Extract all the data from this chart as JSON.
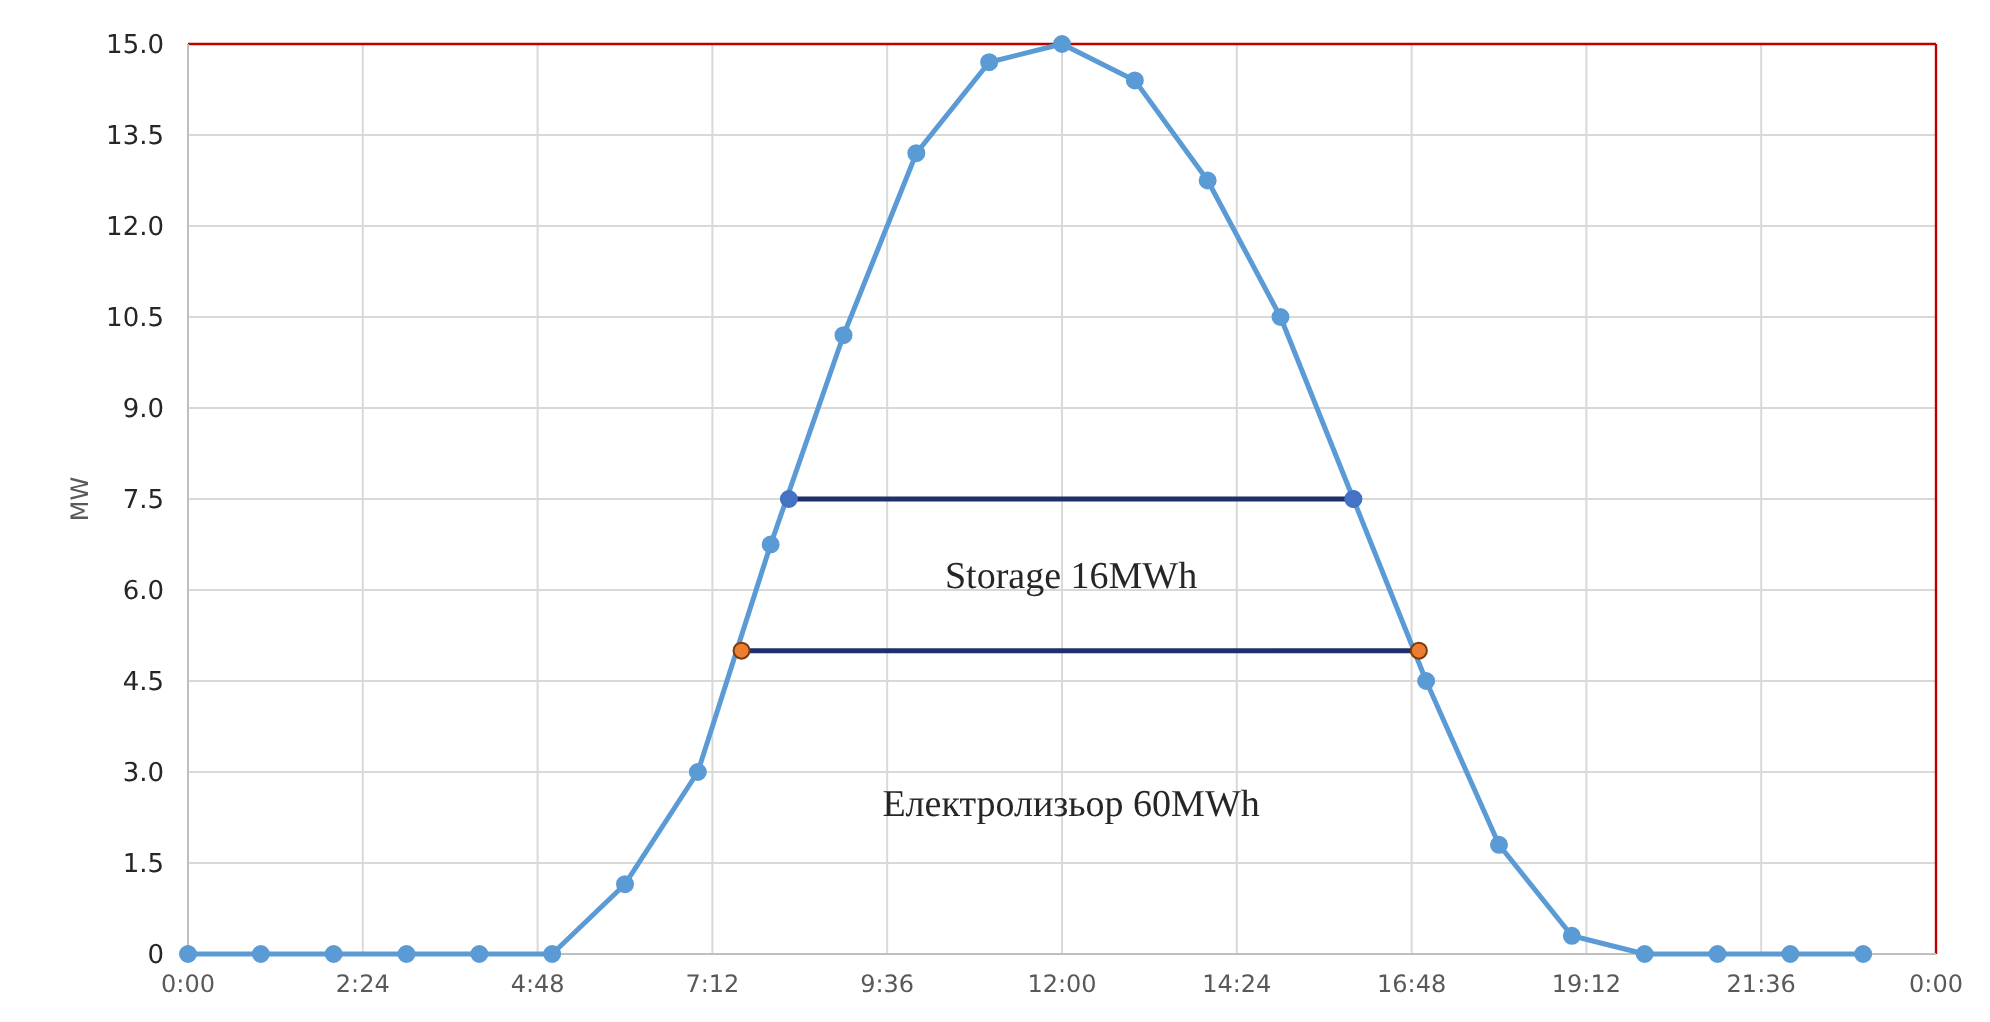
{
  "chart_data": {
    "type": "line",
    "ylabel": "MW",
    "x": [
      0,
      1,
      2,
      3,
      4,
      5,
      6,
      7,
      8,
      9,
      10,
      11,
      12,
      13,
      14,
      15,
      16,
      17,
      18,
      19,
      20,
      21,
      22,
      23
    ],
    "series": [
      {
        "color": "#5b9bd5",
        "values": [
          0,
          0,
          0,
          0,
          0,
          0,
          1.15,
          3.0,
          6.75,
          10.2,
          13.2,
          14.7,
          15.0,
          14.4,
          12.75,
          10.5,
          7.5,
          4.5,
          1.8,
          0.3,
          0,
          0,
          0,
          0
        ]
      },
      {
        "color": "#1f2f6b",
        "x": [
          8.25,
          16
        ],
        "values": [
          7.5,
          7.5
        ],
        "colors": [
          "#4472c4",
          "#4472c4"
        ]
      },
      {
        "color": "#1f2f6b",
        "x": [
          7.6,
          16.9
        ],
        "values": [
          5.0,
          5.0
        ],
        "colors": [
          "#ed7d31",
          "#ed7d31"
        ]
      }
    ],
    "annotations": [
      "Storage 16MWh",
      "Електролизьор 60MWh"
    ],
    "xlim": [
      0,
      24
    ],
    "xticks": [
      {
        "value": 0,
        "label": "0:00"
      },
      {
        "value": 2.4,
        "label": "2:24"
      },
      {
        "value": 4.8,
        "label": "4:48"
      },
      {
        "value": 7.2,
        "label": "7:12"
      },
      {
        "value": 9.6,
        "label": "9:36"
      },
      {
        "value": 12,
        "label": "12:00"
      },
      {
        "value": 14.4,
        "label": "14:24"
      },
      {
        "value": 16.8,
        "label": "16:48"
      },
      {
        "value": 19.2,
        "label": "19:12"
      },
      {
        "value": 21.6,
        "label": "21:36"
      },
      {
        "value": 24,
        "label": "0:00"
      }
    ],
    "ylim": [
      0,
      15
    ],
    "yticks": [
      0,
      1.5,
      {
        "value": 3,
        "label": "3.0"
      },
      4.5,
      {
        "value": 6,
        "label": "6.0"
      },
      7.5,
      {
        "value": 9,
        "label": "9.0"
      },
      10.5,
      {
        "value": 12,
        "label": "12.0"
      },
      13.5,
      {
        "value": 15,
        "label": "15.0"
      }
    ],
    "grid": true,
    "marker": "circle",
    "line_style": "solid"
  }
}
